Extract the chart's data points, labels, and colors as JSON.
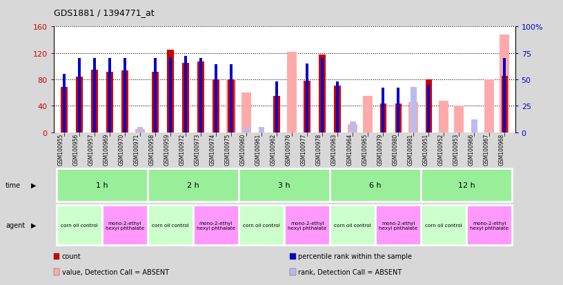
{
  "title": "GDS1881 / 1394771_at",
  "samples": [
    "GSM100955",
    "GSM100956",
    "GSM100957",
    "GSM100969",
    "GSM100970",
    "GSM100971",
    "GSM100958",
    "GSM100959",
    "GSM100972",
    "GSM100973",
    "GSM100974",
    "GSM100975",
    "GSM100960",
    "GSM100961",
    "GSM100962",
    "GSM100976",
    "GSM100977",
    "GSM100978",
    "GSM100963",
    "GSM100964",
    "GSM100965",
    "GSM100979",
    "GSM100980",
    "GSM100981",
    "GSM100951",
    "GSM100952",
    "GSM100953",
    "GSM100966",
    "GSM100967",
    "GSM100968"
  ],
  "count_values": [
    68,
    84,
    95,
    91,
    93,
    0,
    91,
    125,
    105,
    107,
    80,
    80,
    0,
    0,
    55,
    0,
    78,
    118,
    70,
    0,
    0,
    43,
    43,
    0,
    80,
    0,
    0,
    0,
    0,
    85
  ],
  "pct_values": [
    55,
    70,
    70,
    70,
    70,
    0,
    70,
    71,
    72,
    70,
    64,
    64,
    0,
    0,
    48,
    0,
    65,
    70,
    48,
    0,
    0,
    42,
    42,
    0,
    45,
    0,
    0,
    0,
    0,
    70
  ],
  "absent_val": [
    0,
    0,
    0,
    0,
    0,
    5,
    0,
    0,
    0,
    0,
    0,
    80,
    60,
    0,
    0,
    122,
    0,
    0,
    0,
    12,
    55,
    0,
    0,
    45,
    0,
    48,
    40,
    0,
    80,
    148
  ],
  "absent_rank": [
    0,
    0,
    0,
    0,
    0,
    5,
    0,
    0,
    0,
    0,
    0,
    0,
    5,
    5,
    0,
    0,
    0,
    0,
    0,
    10,
    0,
    0,
    10,
    43,
    0,
    0,
    0,
    12,
    0,
    10
  ],
  "time_groups": [
    {
      "label": "1 h",
      "start": 0,
      "end": 6
    },
    {
      "label": "2 h",
      "start": 6,
      "end": 12
    },
    {
      "label": "3 h",
      "start": 12,
      "end": 18
    },
    {
      "label": "6 h",
      "start": 18,
      "end": 24
    },
    {
      "label": "12 h",
      "start": 24,
      "end": 30
    }
  ],
  "agent_groups": [
    {
      "label": "corn oil control",
      "start": 0,
      "end": 3,
      "color": "#ccffcc"
    },
    {
      "label": "mono-2-ethyl\nhexyl phthalate",
      "start": 3,
      "end": 6,
      "color": "#ff99ff"
    },
    {
      "label": "corn oil control",
      "start": 6,
      "end": 9,
      "color": "#ccffcc"
    },
    {
      "label": "mono-2-ethyl\nhexyl phthalate",
      "start": 9,
      "end": 12,
      "color": "#ff99ff"
    },
    {
      "label": "corn oil control",
      "start": 12,
      "end": 15,
      "color": "#ccffcc"
    },
    {
      "label": "mono-2-ethyl\nhexyl phthalate",
      "start": 15,
      "end": 18,
      "color": "#ff99ff"
    },
    {
      "label": "corn oil control",
      "start": 18,
      "end": 21,
      "color": "#ccffcc"
    },
    {
      "label": "mono-2-ethyl\nhexyl phthalate",
      "start": 21,
      "end": 24,
      "color": "#ff99ff"
    },
    {
      "label": "corn oil control",
      "start": 24,
      "end": 27,
      "color": "#ccffcc"
    },
    {
      "label": "mono-2-ethyl\nhexyl phthalate",
      "start": 27,
      "end": 30,
      "color": "#ff99ff"
    }
  ],
  "color_count": "#cc0000",
  "color_pct": "#0000cc",
  "color_absent_val": "#ffaaaa",
  "color_absent_rank": "#bbbbee",
  "ylim_left": [
    0,
    160
  ],
  "ylim_right": [
    0,
    100
  ],
  "yticks_left": [
    0,
    40,
    80,
    120,
    160
  ],
  "ytick_right": [
    0,
    25,
    50,
    75,
    100
  ],
  "ytick_right_labels": [
    "0",
    "25",
    "50",
    "75",
    "100%"
  ],
  "bg_color": "#d8d8d8",
  "plot_bg": "#ffffff",
  "tick_bg": "#cccccc",
  "time_color": "#99ee99",
  "legend_items": [
    {
      "color": "#cc0000",
      "label": "count"
    },
    {
      "color": "#0000cc",
      "label": "percentile rank within the sample"
    },
    {
      "color": "#ffaaaa",
      "label": "value, Detection Call = ABSENT"
    },
    {
      "color": "#bbbbee",
      "label": "rank, Detection Call = ABSENT"
    }
  ]
}
